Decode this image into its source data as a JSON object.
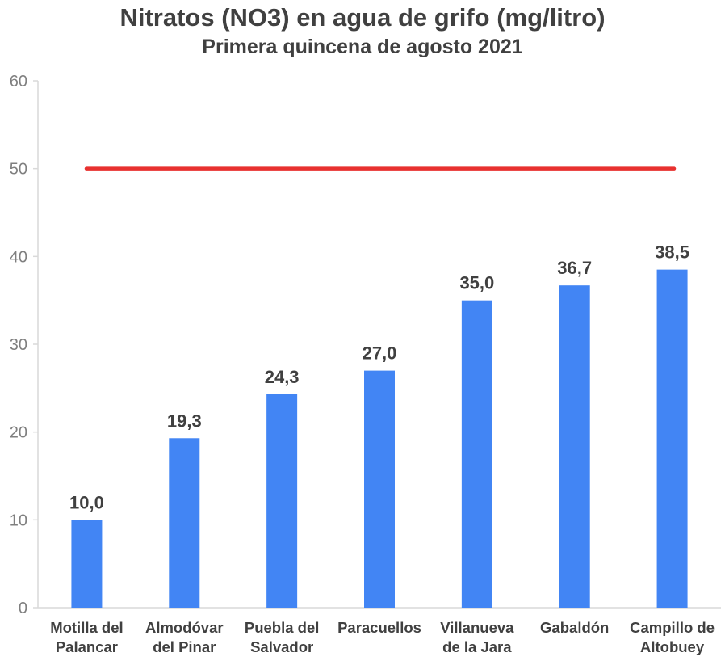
{
  "chart_data": {
    "type": "bar",
    "title": "Nitratos (NO3) en agua de grifo (mg/litro)",
    "subtitle": "Primera quincena de agosto 2021",
    "categories": [
      [
        "Motilla del",
        "Palancar"
      ],
      [
        "Almodóvar",
        "del Pinar"
      ],
      [
        "Puebla del",
        "Salvador"
      ],
      [
        "Paracuellos"
      ],
      [
        "Villanueva",
        "de la Jara"
      ],
      [
        "Gabaldón"
      ],
      [
        "Campillo de",
        "Altobuey"
      ]
    ],
    "values": [
      10.0,
      19.3,
      24.3,
      27.0,
      35.0,
      36.7,
      38.5
    ],
    "data_labels": [
      "10,0",
      "19,3",
      "24,3",
      "27,0",
      "35,0",
      "36,7",
      "38,5"
    ],
    "reference_line": {
      "value": 50,
      "color": "#e8312f"
    },
    "ylim": [
      0,
      60
    ],
    "yticks": [
      0,
      10,
      20,
      30,
      40,
      50,
      60
    ],
    "grid": false,
    "bar_color": "#4285f4",
    "axis_color": "#d9d9d9",
    "xlabel": "",
    "ylabel": ""
  }
}
